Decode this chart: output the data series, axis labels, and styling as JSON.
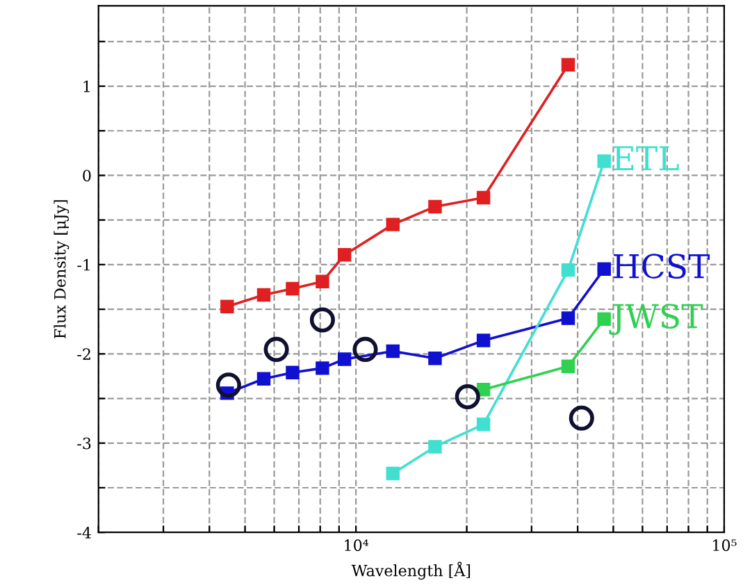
{
  "chart_data": {
    "type": "line",
    "xlabel": "Wavelength [Å]",
    "ylabel": "Flux Density [μJy]",
    "log": "x",
    "xlim": [
      2000,
      100000
    ],
    "ylim": [
      -4,
      1.9
    ],
    "xticks": [
      {
        "value": 2000,
        "label": null
      },
      {
        "value": 3000,
        "label": null
      },
      {
        "value": 4000,
        "label": null
      },
      {
        "value": 5000,
        "label": null
      },
      {
        "value": 6000,
        "label": null
      },
      {
        "value": 7000,
        "label": null
      },
      {
        "value": 8000,
        "label": null
      },
      {
        "value": 9000,
        "label": null
      },
      {
        "value": 10000,
        "label": "10⁴"
      },
      {
        "value": 20000,
        "label": null
      },
      {
        "value": 30000,
        "label": null
      },
      {
        "value": 40000,
        "label": null
      },
      {
        "value": 50000,
        "label": null
      },
      {
        "value": 60000,
        "label": null
      },
      {
        "value": 70000,
        "label": null
      },
      {
        "value": 80000,
        "label": null
      },
      {
        "value": 90000,
        "label": null
      },
      {
        "value": 100000,
        "label": "10⁵"
      }
    ],
    "yticks": [
      -4,
      {
        "value": -3.5,
        "label": null
      },
      -3,
      {
        "value": -2.5,
        "label": null
      },
      -2,
      {
        "value": -1.5,
        "label": null
      },
      -1,
      {
        "value": -0.5,
        "label": null
      },
      0,
      {
        "value": 0.5,
        "label": null
      },
      1,
      {
        "value": 1.5,
        "label": null
      }
    ],
    "grid": true,
    "legend": false,
    "marker": "square",
    "line_style": "solid",
    "series": [
      {
        "color": "#e02020",
        "x": [
          4470,
          5620,
          6730,
          8110,
          9310,
          12600,
          16400,
          22200,
          37700
        ],
        "values": [
          -1.47,
          -1.34,
          -1.27,
          -1.19,
          -0.89,
          -0.55,
          -0.35,
          -0.25,
          1.24
        ]
      },
      {
        "name": "HCST",
        "color": "#1010d0",
        "x": [
          4470,
          5620,
          6730,
          8110,
          9310,
          12600,
          16400,
          22200,
          37700,
          47200
        ],
        "values": [
          -2.44,
          -2.28,
          -2.21,
          -2.16,
          -2.06,
          -1.97,
          -2.05,
          -1.85,
          -1.6,
          -1.05
        ]
      },
      {
        "name": "ETL",
        "color": "#40e0d0",
        "x": [
          12600,
          16400,
          22200,
          37700,
          47200
        ],
        "values": [
          -3.34,
          -3.04,
          -2.79,
          -1.06,
          0.16
        ]
      },
      {
        "name": "JWST",
        "color": "#30d050",
        "x": [
          22200,
          37700,
          47200
        ],
        "values": [
          -2.4,
          -2.14,
          -1.61
        ]
      },
      {
        "type": "scatter",
        "marker": "circle",
        "color": "#101030",
        "x": [
          4510,
          6080,
          8110,
          10600,
          20100,
          41000
        ],
        "values": [
          -2.35,
          -1.95,
          -1.62,
          -1.95,
          -2.48,
          -2.72
        ]
      }
    ]
  }
}
